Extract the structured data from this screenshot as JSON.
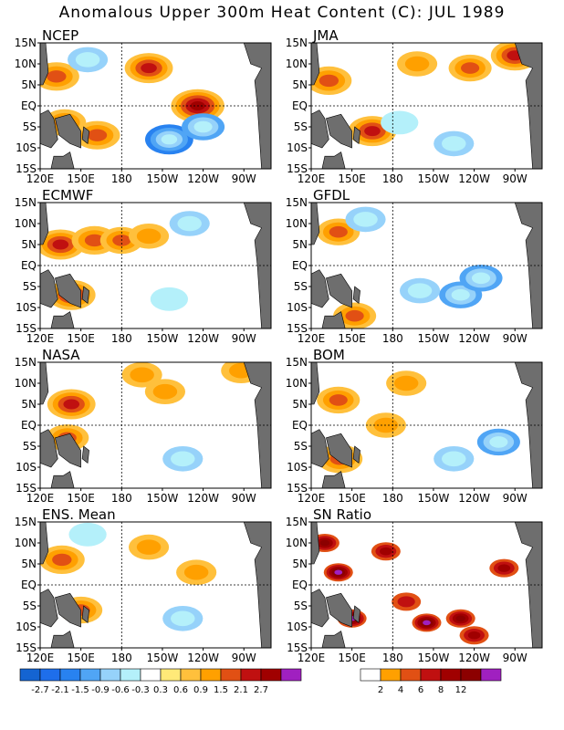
{
  "title": "Anomalous Upper 300m Heat Content (C): JUL 1989",
  "chart_data": {
    "type": "heatmap",
    "title": "Anomalous Upper 300m Heat Content (C): JUL 1989",
    "x_ticks": [
      "120E",
      "150E",
      "180",
      "150W",
      "120W",
      "90W"
    ],
    "y_ticks": [
      "15N",
      "10N",
      "5N",
      "EQ",
      "5S",
      "10S",
      "15S"
    ],
    "panels": [
      {
        "name": "NCEP",
        "anomalies": [
          {
            "x": 132,
            "y": 7,
            "v": 1.2
          },
          {
            "x": 138,
            "y": -4,
            "v": 0.9
          },
          {
            "x": 162,
            "y": -7,
            "v": 1.2
          },
          {
            "x": 200,
            "y": 9,
            "v": 1.5
          },
          {
            "x": 236,
            "y": 0,
            "v": 2.1
          },
          {
            "x": 215,
            "y": -8,
            "v": -1.5
          },
          {
            "x": 240,
            "y": -5,
            "v": -0.9
          },
          {
            "x": 155,
            "y": 11,
            "v": -0.6
          }
        ]
      },
      {
        "name": "JMA",
        "anomalies": [
          {
            "x": 133,
            "y": 6,
            "v": 1.2
          },
          {
            "x": 165,
            "y": -6,
            "v": 1.5
          },
          {
            "x": 198,
            "y": 10,
            "v": 0.6
          },
          {
            "x": 237,
            "y": 9,
            "v": 0.9
          },
          {
            "x": 270,
            "y": 12,
            "v": 1.5
          },
          {
            "x": 225,
            "y": -9,
            "v": -0.6
          },
          {
            "x": 185,
            "y": -4,
            "v": -0.3
          }
        ]
      },
      {
        "name": "ECMWF",
        "anomalies": [
          {
            "x": 135,
            "y": 5,
            "v": 1.5
          },
          {
            "x": 160,
            "y": 6,
            "v": 1.2
          },
          {
            "x": 180,
            "y": 6,
            "v": 0.9
          },
          {
            "x": 200,
            "y": 7,
            "v": 0.6
          },
          {
            "x": 143,
            "y": -7,
            "v": 1.5
          },
          {
            "x": 230,
            "y": 10,
            "v": -0.6
          },
          {
            "x": 215,
            "y": -8,
            "v": -0.3
          }
        ]
      },
      {
        "name": "GFDL",
        "anomalies": [
          {
            "x": 140,
            "y": 8,
            "v": 0.9
          },
          {
            "x": 152,
            "y": -12,
            "v": 0.9
          },
          {
            "x": 230,
            "y": -7,
            "v": -0.9
          },
          {
            "x": 200,
            "y": -6,
            "v": -0.6
          },
          {
            "x": 245,
            "y": -3,
            "v": -0.9
          },
          {
            "x": 160,
            "y": 11,
            "v": -0.6
          }
        ]
      },
      {
        "name": "NASA",
        "anomalies": [
          {
            "x": 143,
            "y": 5,
            "v": 1.5
          },
          {
            "x": 140,
            "y": -3,
            "v": 0.9
          },
          {
            "x": 195,
            "y": 12,
            "v": 0.6
          },
          {
            "x": 212,
            "y": 8,
            "v": 0.6
          },
          {
            "x": 225,
            "y": -8,
            "v": -0.6
          },
          {
            "x": 268,
            "y": 13,
            "v": 0.6
          }
        ]
      },
      {
        "name": "BOM",
        "anomalies": [
          {
            "x": 140,
            "y": 6,
            "v": 0.9
          },
          {
            "x": 141,
            "y": -8,
            "v": 1.2
          },
          {
            "x": 175,
            "y": 0,
            "v": 0.6
          },
          {
            "x": 225,
            "y": -8,
            "v": -0.6
          },
          {
            "x": 258,
            "y": -4,
            "v": -0.9
          },
          {
            "x": 190,
            "y": 10,
            "v": 0.6
          }
        ]
      },
      {
        "name": "ENS. Mean",
        "anomalies": [
          {
            "x": 136,
            "y": 6,
            "v": 1.2
          },
          {
            "x": 150,
            "y": -6,
            "v": 0.9
          },
          {
            "x": 200,
            "y": 9,
            "v": 0.6
          },
          {
            "x": 225,
            "y": -8,
            "v": -0.6
          },
          {
            "x": 235,
            "y": 3,
            "v": 0.6
          },
          {
            "x": 155,
            "y": 12,
            "v": -0.3
          }
        ]
      },
      {
        "name": "SN Ratio",
        "anomalies": [
          {
            "x": 130,
            "y": 10,
            "v": 8
          },
          {
            "x": 140,
            "y": 3,
            "v": 12
          },
          {
            "x": 150,
            "y": -8,
            "v": 12
          },
          {
            "x": 175,
            "y": 8,
            "v": 6
          },
          {
            "x": 205,
            "y": -9,
            "v": 12
          },
          {
            "x": 230,
            "y": -8,
            "v": 8
          },
          {
            "x": 262,
            "y": 4,
            "v": 6
          },
          {
            "x": 190,
            "y": -4,
            "v": 4
          },
          {
            "x": 240,
            "y": -12,
            "v": 6
          }
        ]
      }
    ]
  },
  "colorbar_anomaly": {
    "labels": [
      "-2.7",
      "-2.1",
      "-1.5",
      "-0.9",
      "-0.6",
      "-0.3",
      "0.3",
      "0.6",
      "0.9",
      "1.5",
      "2.1",
      "2.7"
    ],
    "colors": [
      "#1464d2",
      "#1e6eeb",
      "#2882f0",
      "#50a5f5",
      "#96d2fa",
      "#b4f0fa",
      "#ffffff",
      "#ffe978",
      "#ffc03c",
      "#ffa000",
      "#e15014",
      "#c01010",
      "#a00000",
      "#a020c0"
    ]
  },
  "colorbar_sn": {
    "labels": [
      "2",
      "4",
      "6",
      "8",
      "12"
    ],
    "colors": [
      "#ffffff",
      "#ffa000",
      "#e15014",
      "#c01010",
      "#a00000",
      "#8c0000",
      "#a020c0"
    ]
  },
  "land_color": "#6e6e6e"
}
